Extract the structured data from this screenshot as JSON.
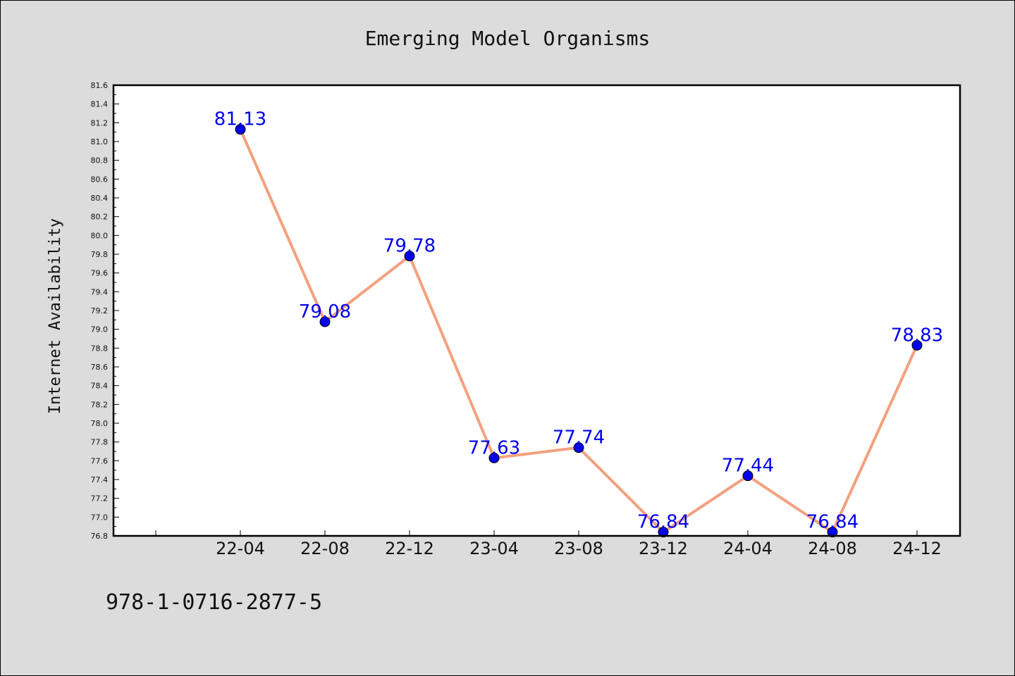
{
  "chart_data": {
    "type": "line",
    "title": "Emerging Model Organisms",
    "xlabel": "",
    "ylabel": "Internet Availability",
    "categories": [
      "22-04",
      "22-08",
      "22-12",
      "23-04",
      "23-08",
      "23-12",
      "24-04",
      "24-08",
      "24-12"
    ],
    "values": [
      81.13,
      79.08,
      79.78,
      77.63,
      77.74,
      76.84,
      77.44,
      76.84,
      78.83
    ],
    "data_labels": [
      "81.13",
      "79.08",
      "79.78",
      "77.63",
      "77.74",
      "76.84",
      "77.44",
      "76.84",
      "78.83"
    ],
    "ylim": [
      76.8,
      81.6
    ],
    "yticks": [
      "76.8",
      "77.0",
      "77.2",
      "77.4",
      "77.6",
      "77.8",
      "78.0",
      "78.2",
      "78.4",
      "78.6",
      "78.8",
      "79.0",
      "79.2",
      "79.4",
      "79.6",
      "79.8",
      "80.0",
      "80.2",
      "80.4",
      "80.6",
      "80.8",
      "81.0",
      "81.2",
      "81.4",
      "81.6"
    ],
    "grid": false,
    "legend": "none",
    "line_color": "#f4a07e",
    "marker_color": "#0000ee",
    "label_color": "#0000ee",
    "background_color": "#dcdcdc",
    "plot_background_color": "#ffffff"
  },
  "footnote": "978-1-0716-2877-5"
}
